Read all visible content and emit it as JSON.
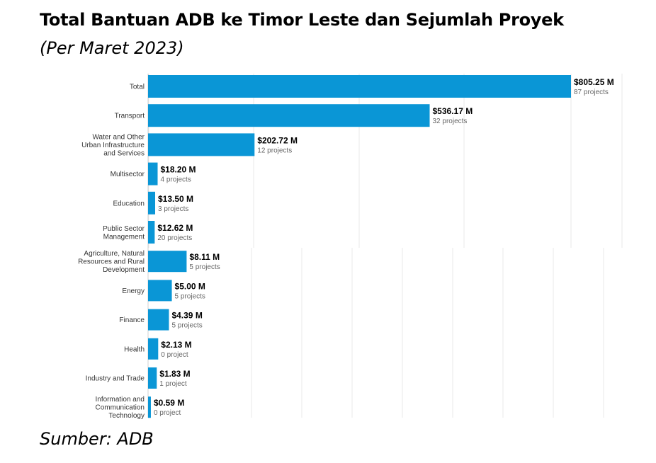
{
  "header": {
    "title": "Total Bantuan ADB ke Timor Leste dan Sejumlah Proyek",
    "subtitle": "(Per Maret 2023)"
  },
  "footer": {
    "source": "Sumber: ADB"
  },
  "colors": {
    "bar": "#0a96d6",
    "grid": "#e8e8e8"
  },
  "chart_data": {
    "type": "bar",
    "orientation": "horizontal",
    "grid": true,
    "categories": [
      [
        "Total"
      ],
      [
        "Transport"
      ],
      [
        "Water and Other",
        "Urban Infrastructure",
        "and Services"
      ],
      [
        "Multisector"
      ],
      [
        "Education"
      ],
      [
        "Public Sector",
        "Management"
      ],
      [
        "Agriculture, Natural",
        "Resources and Rural",
        "Development"
      ],
      [
        "Energy"
      ],
      [
        "Finance"
      ],
      [
        "Health"
      ],
      [
        "Industry and Trade"
      ],
      [
        "Information and",
        "Communication",
        "Technology"
      ]
    ],
    "values": [
      805.25,
      536.17,
      202.72,
      18.2,
      13.5,
      12.62,
      8.11,
      5.0,
      4.39,
      2.13,
      1.83,
      0.59
    ],
    "value_labels": [
      "$805.25 M",
      "$536.17 M",
      "$202.72 M",
      "$18.20 M",
      "$13.50 M",
      "$12.62 M",
      "$8.11 M",
      "$5.00 M",
      "$4.39 M",
      "$2.13 M",
      "$1.83 M",
      "$0.59 M"
    ],
    "project_labels": [
      "87 projects",
      "32 projects",
      "12 projects",
      "4 projects",
      "3 projects",
      "20 projects",
      "5 projects",
      "5 projects",
      "5 projects",
      "0 project",
      "1 project",
      "0 project"
    ],
    "xlim_top": [
      0,
      805.25
    ],
    "xlim_bottom": [
      0,
      100
    ]
  }
}
